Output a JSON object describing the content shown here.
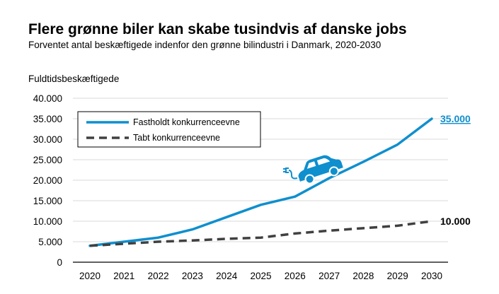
{
  "chart_data": {
    "type": "line",
    "title": "Flere grønne biler kan skabe tusindvis af danske jobs",
    "subtitle": "Forventet antal beskæftigede indenfor den grønne bilindustri i Danmark, 2020-2030",
    "ylabel": "Fuldtidsbeskæftigede",
    "xlabel": "",
    "x": [
      "2020",
      "2021",
      "2022",
      "2023",
      "2024",
      "2025",
      "2026",
      "2027",
      "2028",
      "2029",
      "2030"
    ],
    "ylim": [
      0,
      40000
    ],
    "yticks": [
      0,
      5000,
      10000,
      15000,
      20000,
      25000,
      30000,
      35000,
      40000
    ],
    "ytick_labels": [
      "0",
      "5.000",
      "10.000",
      "15.000",
      "20.000",
      "25.000",
      "30.000",
      "35.000",
      "40.000"
    ],
    "grid": true,
    "legend_position": "top-left",
    "series": [
      {
        "name": "Fastholdt konkurrenceevne",
        "color": "#0f8fce",
        "style": "solid",
        "values": [
          4000,
          5000,
          6000,
          8000,
          11000,
          14000,
          16000,
          20500,
          24500,
          28700,
          35000
        ],
        "end_label": "35.000"
      },
      {
        "name": "Tabt konkurrenceevne",
        "color": "#404040",
        "style": "dashed",
        "values": [
          4000,
          4500,
          5000,
          5300,
          5700,
          6000,
          7000,
          7700,
          8300,
          8900,
          10000
        ],
        "end_label": "10.000"
      }
    ],
    "annotation_icon": "electric-car-icon"
  }
}
